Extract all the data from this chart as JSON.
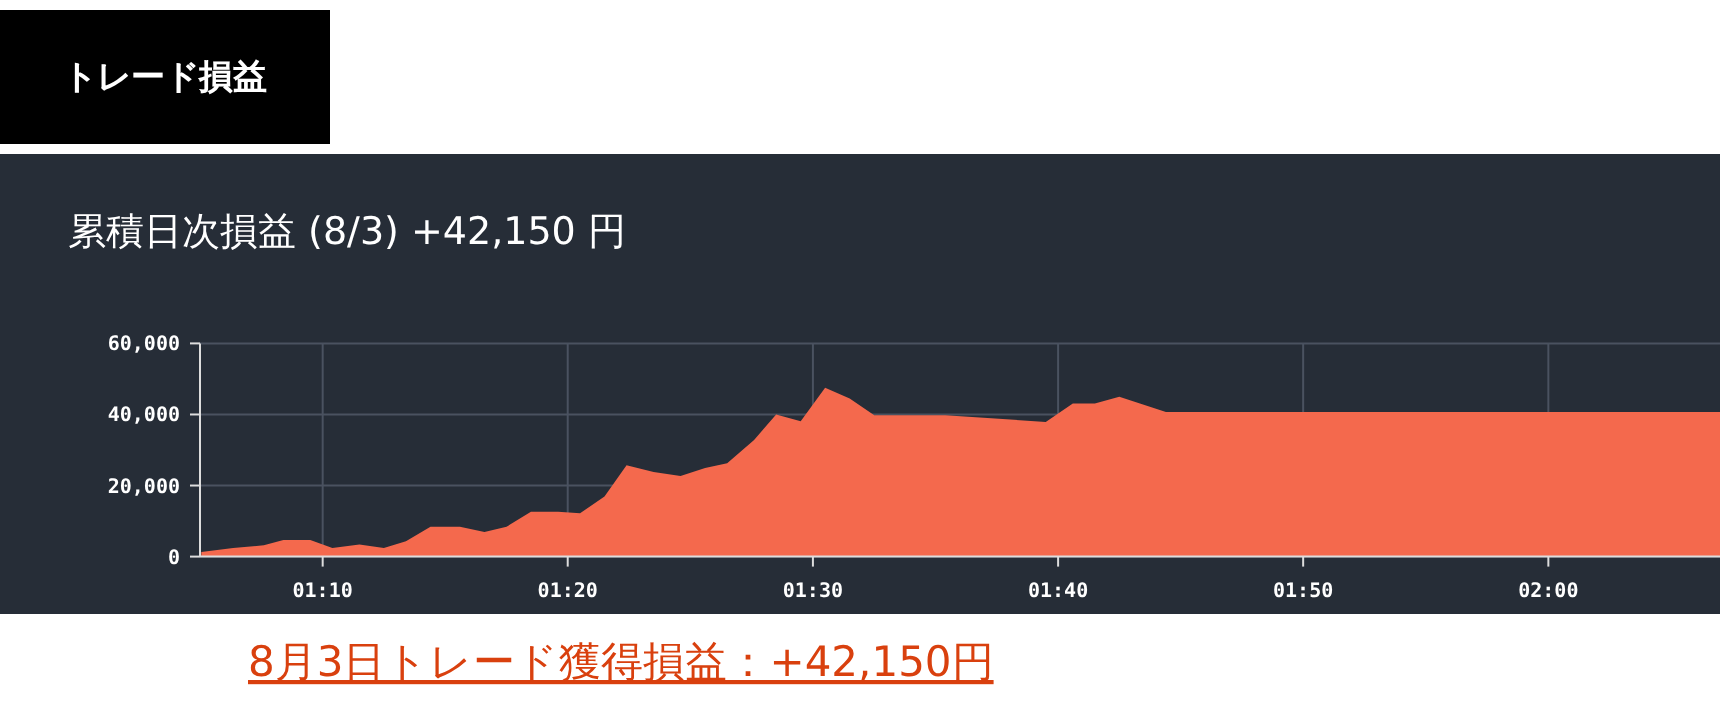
{
  "chart_data": {
    "type": "area",
    "title": "トレード損益",
    "subtitle": "累積日次損益 (8/3) +42,150 円",
    "annotations": [
      "8月3日トレード獲得損益：+42,150円"
    ],
    "x": [
      1.0842,
      1.1058,
      1.1267,
      1.14,
      1.1583,
      1.1733,
      1.1917,
      1.2083,
      1.2233,
      1.24,
      1.26,
      1.2767,
      1.2917,
      1.3083,
      1.3267,
      1.3417,
      1.3583,
      1.3733,
      1.3917,
      1.41,
      1.4267,
      1.4417,
      1.46,
      1.475,
      1.4917,
      1.5083,
      1.525,
      1.5417,
      1.59,
      1.6583,
      1.6767,
      1.6917,
      1.7083,
      1.74,
      2.1167
    ],
    "series": [
      {
        "color": "#f4694d",
        "values": [
          1300,
          2400,
          3200,
          4700,
          4700,
          2400,
          3400,
          2400,
          4300,
          8400,
          8400,
          6900,
          8400,
          12600,
          12600,
          12200,
          16900,
          25700,
          23800,
          22700,
          24900,
          26300,
          32800,
          40000,
          38100,
          47500,
          44500,
          39800,
          39800,
          37900,
          43100,
          43100,
          45000,
          40700,
          40700
        ]
      }
    ],
    "xlim": [
      1.0833,
      2.1167
    ],
    "xticks": [
      {
        "value": 1.1667,
        "label": "01:10"
      },
      {
        "value": 1.3333,
        "label": "01:20"
      },
      {
        "value": 1.5,
        "label": "01:30"
      },
      {
        "value": 1.6667,
        "label": "01:40"
      },
      {
        "value": 1.8333,
        "label": "01:50"
      },
      {
        "value": 2,
        "label": "02:00"
      }
    ],
    "ylim": [
      0,
      60000
    ],
    "yticks": [
      0,
      {
        "value": 20000,
        "label": "20,000"
      },
      {
        "value": 40000,
        "label": "40,000"
      },
      {
        "value": 60000,
        "label": "60,000"
      }
    ],
    "grid": true
  }
}
